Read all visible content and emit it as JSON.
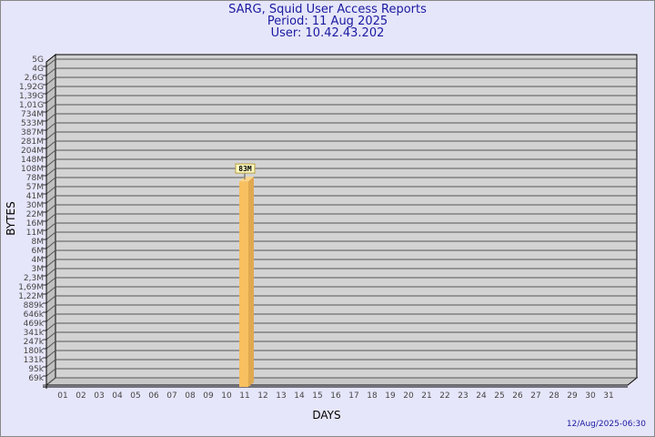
{
  "header": {
    "title": "SARG, Squid User Access Reports",
    "period": "Period: 11 Aug 2025",
    "user": "User: 10.42.43.202"
  },
  "footer": {
    "generated": "12/Aug/2025-06:30"
  },
  "colors": {
    "background": "#e6e6fa",
    "plot": "#d3d3d3",
    "bar": "#f8c060",
    "bar_side": "#e0a850",
    "title": "#1a1aa0"
  },
  "chart_data": {
    "type": "bar",
    "xlabel": "DAYS",
    "ylabel": "BYTES",
    "y_scale": "log",
    "grid": true,
    "y_ticks": [
      "5G",
      "4G",
      "2,6G",
      "1,92G",
      "1,39G",
      "1,01G",
      "734M",
      "533M",
      "387M",
      "281M",
      "204M",
      "148M",
      "108M",
      "78M",
      "57M",
      "41M",
      "30M",
      "22M",
      "16M",
      "11M",
      "8M",
      "6M",
      "4M",
      "3M",
      "2,3M",
      "1,69M",
      "1,22M",
      "889k",
      "646k",
      "469k",
      "341k",
      "247k",
      "180k",
      "131k",
      "95k",
      "69k"
    ],
    "categories": [
      "01",
      "02",
      "03",
      "04",
      "05",
      "06",
      "07",
      "08",
      "09",
      "10",
      "11",
      "12",
      "13",
      "14",
      "15",
      "16",
      "17",
      "18",
      "19",
      "20",
      "21",
      "22",
      "23",
      "24",
      "25",
      "26",
      "27",
      "28",
      "29",
      "30",
      "31"
    ],
    "bars": [
      {
        "day": "11",
        "value": "83M"
      }
    ]
  }
}
